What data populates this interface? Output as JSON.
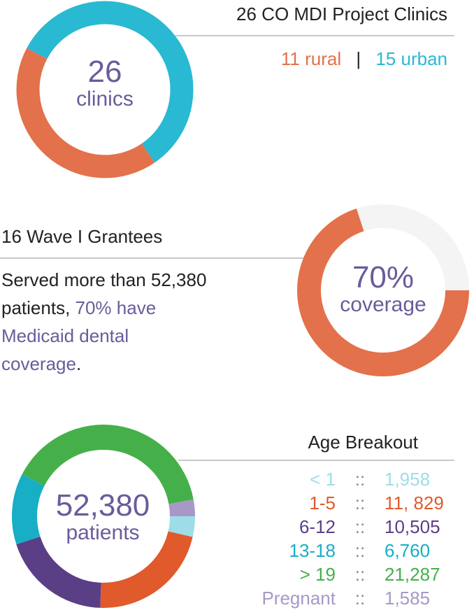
{
  "colors": {
    "orange": "#e3714b",
    "cyan": "#29b9d2",
    "purple": "#6b5b9a",
    "gray_track": "#f4f4f4",
    "light_cyan": "#9edde8",
    "dark_orange": "#e05a2b",
    "dark_purple": "#5a3f87",
    "teal": "#17aec6",
    "green": "#45b04a",
    "lavender": "#a898c8"
  },
  "clinics": {
    "title": "26 CO MDI Project Clinics",
    "number": "26",
    "unit": "clinics",
    "rural": "11 rural",
    "divider": "|",
    "urban": "15 urban"
  },
  "grantees": {
    "title": "16 Wave I Grantees",
    "text_plain_1": "Served more than 52,380 patients, ",
    "text_highlight": "70% have Medicaid dental coverage",
    "text_plain_2": ".",
    "percent": "70%",
    "unit": "coverage"
  },
  "patients": {
    "number": "52,380",
    "unit": "patients",
    "heading": "Age Breakout",
    "separator": "::",
    "rows": [
      {
        "label": "< 1",
        "value": "1,958",
        "color": "#9edde8"
      },
      {
        "label": "1-5",
        "value": "11, 829",
        "color": "#e05a2b"
      },
      {
        "label": "6-12",
        "value": "10,505",
        "color": "#5a3f87"
      },
      {
        "label": "13-18",
        "value": "6,760",
        "color": "#17aec6"
      },
      {
        "label": "> 19",
        "value": "21,287",
        "color": "#45b04a"
      },
      {
        "label": "Pregnant",
        "value": "1,585",
        "color": "#a898c8"
      }
    ]
  },
  "chart_data": [
    {
      "type": "pie",
      "categories": [
        "rural",
        "urban"
      ],
      "values": [
        11,
        15
      ],
      "colors": [
        "#e3714b",
        "#29b9d2"
      ]
    },
    {
      "type": "pie",
      "categories": [
        "coverage",
        "other"
      ],
      "values": [
        70,
        30
      ],
      "colors": [
        "#e3714b",
        "#f4f4f4"
      ]
    },
    {
      "type": "pie",
      "categories": [
        "< 1",
        "1-5",
        "6-12",
        "13-18",
        "> 19",
        "Pregnant"
      ],
      "values": [
        1958,
        11829,
        10505,
        6760,
        21287,
        1585
      ],
      "colors": [
        "#9edde8",
        "#e05a2b",
        "#5a3f87",
        "#17aec6",
        "#45b04a",
        "#a898c8"
      ]
    }
  ]
}
